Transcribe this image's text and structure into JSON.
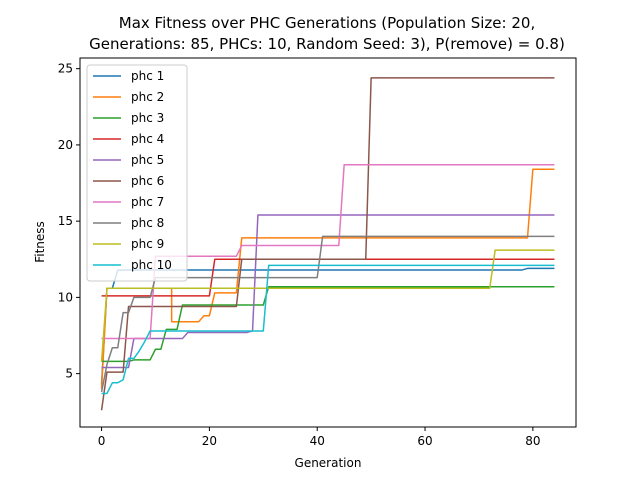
{
  "chart_data": {
    "type": "line",
    "title_line1": "Max Fitness over PHC Generations (Population Size: 20,",
    "title_line2": "Generations: 85, PHCs: 10, Random Seed: 3), P(remove) = 0.8)",
    "xlabel": "Generation",
    "ylabel": "Fitness",
    "xlim": [
      -4,
      88
    ],
    "ylim": [
      1.5,
      25.7
    ],
    "xticks": [
      0,
      20,
      40,
      60,
      80
    ],
    "yticks": [
      5,
      10,
      15,
      20,
      25
    ],
    "legend_position": "upper-left",
    "series": [
      {
        "name": "phc 1",
        "color": "#1f77b4",
        "points": [
          [
            0,
            4.3
          ],
          [
            1,
            10.6
          ],
          [
            2,
            10.6
          ],
          [
            3,
            11.8
          ],
          [
            4,
            11.8
          ],
          [
            78,
            11.8
          ],
          [
            79,
            11.9
          ],
          [
            84,
            11.9
          ]
        ]
      },
      {
        "name": "phc 2",
        "color": "#ff7f0e",
        "points": [
          [
            0,
            4.0
          ],
          [
            1,
            10.6
          ],
          [
            13,
            10.6
          ],
          [
            13,
            8.4
          ],
          [
            18,
            8.4
          ],
          [
            19,
            8.8
          ],
          [
            20,
            8.8
          ],
          [
            21,
            10.3
          ],
          [
            25,
            10.3
          ],
          [
            26,
            13.9
          ],
          [
            79,
            13.9
          ],
          [
            80,
            18.4
          ],
          [
            84,
            18.4
          ]
        ]
      },
      {
        "name": "phc 3",
        "color": "#2ca02c",
        "points": [
          [
            0,
            5.8
          ],
          [
            1,
            5.8
          ],
          [
            5,
            5.8
          ],
          [
            6,
            5.9
          ],
          [
            9,
            5.9
          ],
          [
            10,
            6.6
          ],
          [
            11,
            6.6
          ],
          [
            12,
            7.9
          ],
          [
            14,
            7.9
          ],
          [
            15,
            9.5
          ],
          [
            30,
            9.5
          ],
          [
            31,
            10.7
          ],
          [
            84,
            10.7
          ]
        ]
      },
      {
        "name": "phc 4",
        "color": "#d62728",
        "points": [
          [
            0,
            10.1
          ],
          [
            20,
            10.1
          ],
          [
            21,
            12.5
          ],
          [
            84,
            12.5
          ]
        ]
      },
      {
        "name": "phc 5",
        "color": "#9467bd",
        "points": [
          [
            0,
            5.4
          ],
          [
            5,
            5.4
          ],
          [
            6,
            7.3
          ],
          [
            15,
            7.3
          ],
          [
            16,
            7.7
          ],
          [
            27,
            7.7
          ],
          [
            28,
            7.8
          ],
          [
            29,
            15.4
          ],
          [
            84,
            15.4
          ]
        ]
      },
      {
        "name": "phc 6",
        "color": "#8c564b",
        "points": [
          [
            0,
            2.6
          ],
          [
            1,
            5.1
          ],
          [
            4,
            5.1
          ],
          [
            5,
            9.4
          ],
          [
            25,
            9.4
          ],
          [
            26,
            12.5
          ],
          [
            49,
            12.5
          ],
          [
            50,
            24.4
          ],
          [
            84,
            24.4
          ]
        ]
      },
      {
        "name": "phc 7",
        "color": "#e377c2",
        "points": [
          [
            0,
            7.3
          ],
          [
            9,
            7.3
          ],
          [
            10,
            12.7
          ],
          [
            25,
            12.7
          ],
          [
            26,
            13.4
          ],
          [
            44,
            13.4
          ],
          [
            45,
            18.7
          ],
          [
            84,
            18.7
          ]
        ]
      },
      {
        "name": "phc 8",
        "color": "#7f7f7f",
        "points": [
          [
            0,
            3.8
          ],
          [
            1,
            5.6
          ],
          [
            2,
            6.7
          ],
          [
            3,
            6.7
          ],
          [
            4,
            9.0
          ],
          [
            5,
            9.0
          ],
          [
            6,
            10.0
          ],
          [
            9,
            10.0
          ],
          [
            10,
            11.3
          ],
          [
            40,
            11.3
          ],
          [
            41,
            14.0
          ],
          [
            84,
            14.0
          ]
        ]
      },
      {
        "name": "phc 9",
        "color": "#bcbd22",
        "points": [
          [
            0,
            5.8
          ],
          [
            1,
            10.6
          ],
          [
            72,
            10.6
          ],
          [
            73,
            13.1
          ],
          [
            84,
            13.1
          ]
        ]
      },
      {
        "name": "phc 10",
        "color": "#17becf",
        "points": [
          [
            0,
            3.7
          ],
          [
            1,
            3.7
          ],
          [
            2,
            4.4
          ],
          [
            3,
            4.4
          ],
          [
            4,
            4.6
          ],
          [
            5,
            6.0
          ],
          [
            6,
            6.0
          ],
          [
            7,
            6.5
          ],
          [
            8,
            7.1
          ],
          [
            9,
            7.8
          ],
          [
            30,
            7.8
          ],
          [
            31,
            12.1
          ],
          [
            84,
            12.1
          ]
        ]
      }
    ]
  }
}
